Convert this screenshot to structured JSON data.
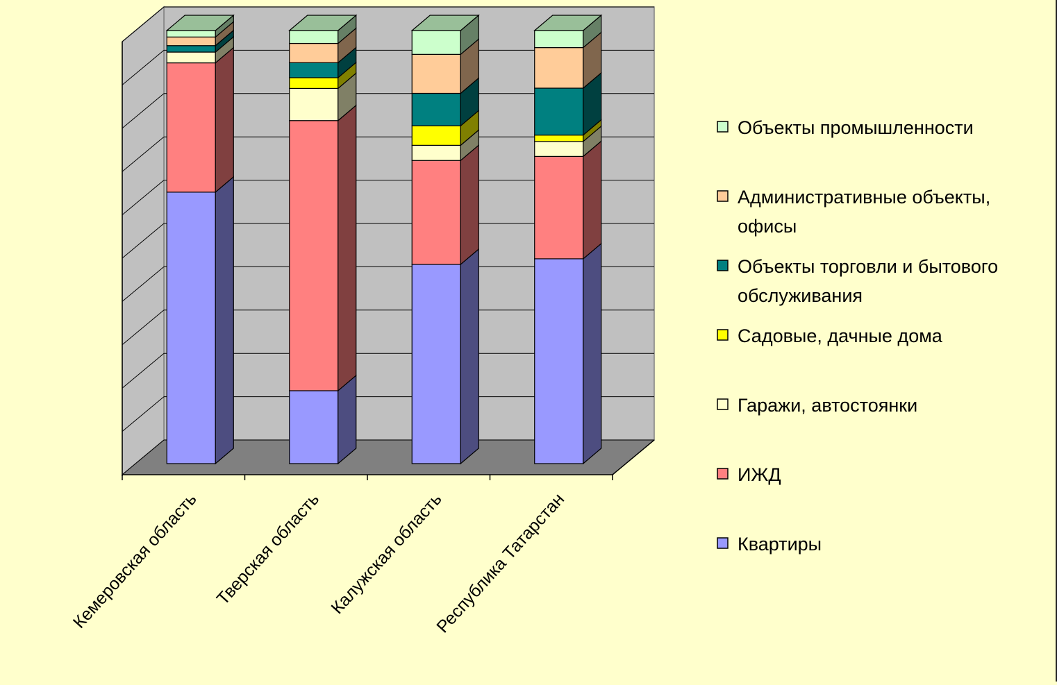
{
  "chart_data": {
    "type": "bar",
    "stacked": true,
    "percent_stacked": true,
    "three_d": true,
    "categories": [
      "Кемеровская область",
      "Тверская область",
      "Калужская область",
      "Республика Татарстан"
    ],
    "series": [
      {
        "name": "Квартиры",
        "color": "#9999ff",
        "values": [
          63,
          17,
          46,
          48
        ]
      },
      {
        "name": "ИЖД",
        "color": "#ff8080",
        "values": [
          30,
          63,
          24,
          24
        ]
      },
      {
        "name": "Гаражи, автостоянки",
        "color": "#ffffcc",
        "values": [
          2.5,
          7.5,
          3.5,
          3.5
        ]
      },
      {
        "name": "Садовые, дачные дома",
        "color": "#ffff00",
        "values": [
          0,
          2.5,
          4.5,
          1.5
        ]
      },
      {
        "name": "Объекты торговли и бытового обслуживания",
        "color": "#008080",
        "values": [
          1.5,
          3.5,
          7.5,
          11
        ]
      },
      {
        "name": "Административные объекты, офисы",
        "color": "#ffcc99",
        "values": [
          2,
          4.5,
          9,
          9.5
        ]
      },
      {
        "name": "Объекты промышленности",
        "color": "#ccffcc",
        "values": [
          1.5,
          3,
          5.5,
          4
        ]
      }
    ],
    "ylim": [
      0,
      100
    ],
    "grid": true,
    "legend_position": "right"
  }
}
